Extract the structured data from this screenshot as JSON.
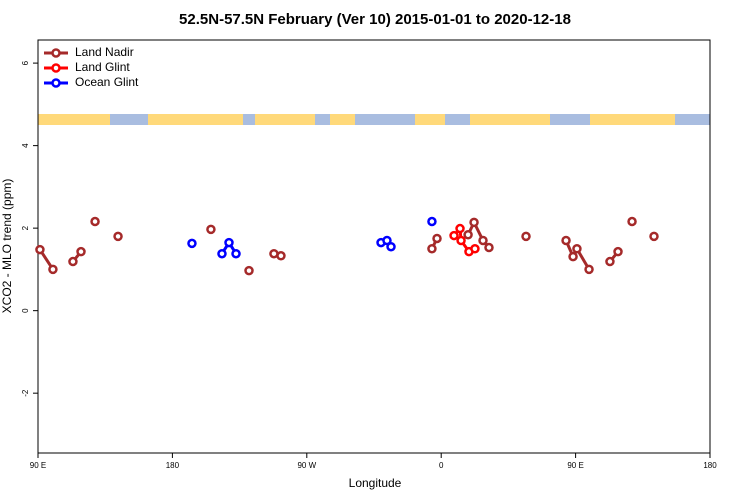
{
  "chart_data": {
    "type": "line",
    "title": "52.5N-57.5N February (Ver 10)   2015-01-01 to 2020-12-18",
    "x_label": "Longitude",
    "y_label": "XCO2 - MLO trend (ppm)",
    "xlim": [
      90,
      540
    ],
    "ylim": [
      -3.45,
      6.56
    ],
    "xticks": [
      {
        "value": 90,
        "label": "90 E"
      },
      180,
      {
        "value": 270,
        "label": "90 W"
      },
      {
        "value": 360,
        "label": "0"
      },
      {
        "value": 450,
        "label": "90 E"
      },
      {
        "value": 540,
        "label": "180"
      }
    ],
    "yticks": [
      -2,
      0,
      2,
      4,
      6
    ],
    "legend": "top-left",
    "series": [
      {
        "name": "Land Nadir",
        "color": "#a52a2a",
        "x": [
          91.3,
          100.0,
          null,
          113.4,
          118.8,
          null,
          128.2,
          null,
          143.6,
          null,
          205.8,
          null,
          231.3,
          null,
          248.0,
          252.7,
          null,
          353.8,
          357.2,
          null,
          378.0,
          382.0,
          388.0,
          392.0,
          null,
          416.8,
          null,
          443.6,
          448.3,
          450.9,
          459.0,
          null,
          473.0,
          478.4,
          null,
          487.8,
          null,
          502.5
        ],
        "values": [
          1.48,
          1.0,
          null,
          1.19,
          1.43,
          null,
          2.16,
          null,
          1.8,
          null,
          1.97,
          null,
          0.97,
          null,
          1.38,
          1.33,
          null,
          1.5,
          1.75,
          null,
          1.84,
          2.14,
          1.7,
          1.53,
          null,
          1.8,
          null,
          1.7,
          1.31,
          1.5,
          1.0,
          null,
          1.19,
          1.43,
          null,
          2.16,
          null,
          1.8
        ]
      },
      {
        "name": "Land Glint",
        "color": "#ff0000",
        "x": [
          368.6,
          372.6,
          373.3,
          378.6,
          382.6
        ],
        "values": [
          1.82,
          1.99,
          1.7,
          1.43,
          1.5
        ]
      },
      {
        "name": "Ocean Glint",
        "color": "#0000ff",
        "x": [
          193.1,
          null,
          213.2,
          217.9,
          222.6,
          null,
          319.7,
          323.7,
          326.4,
          null,
          353.8
        ],
        "values": [
          1.63,
          null,
          1.38,
          1.65,
          1.38,
          null,
          1.65,
          1.7,
          1.55,
          null,
          2.16
        ]
      }
    ]
  }
}
